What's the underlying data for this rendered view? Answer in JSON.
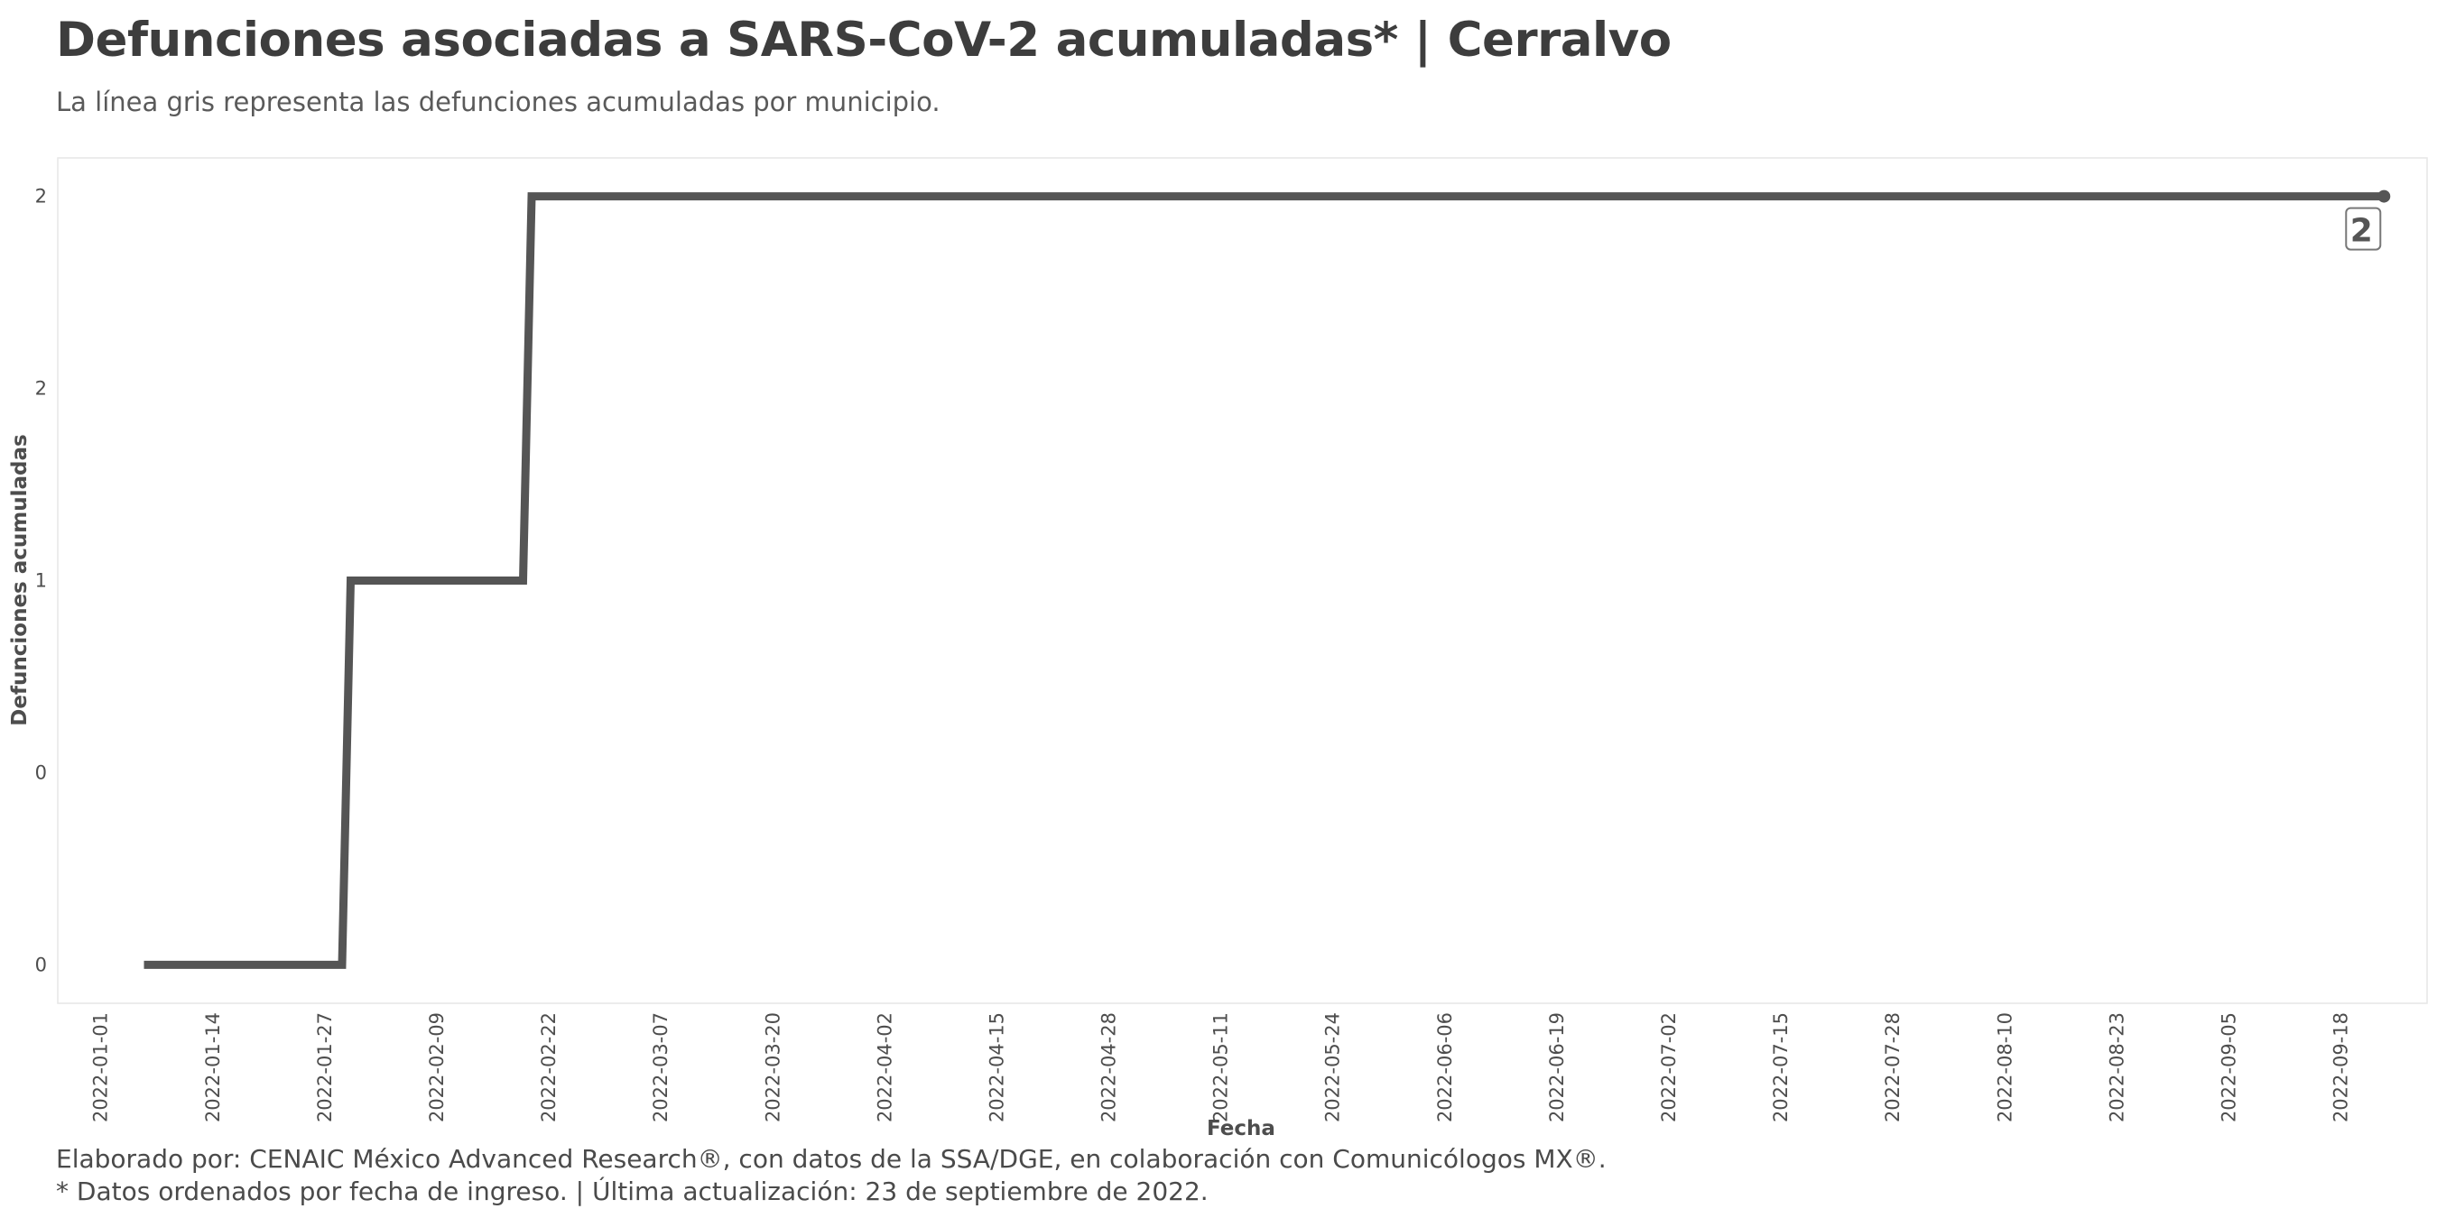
{
  "header": {
    "title": "Defunciones asociadas a SARS-CoV-2 acumuladas* | Cerralvo",
    "subtitle": "La línea gris representa las defunciones acumuladas por municipio."
  },
  "footer": {
    "caption_line1": "Elaborado por: CENAIC México Advanced Research®, con datos de la SSA/DGE, en colaboración con Comunicólogos MX®.",
    "caption_line2": "* Datos ordenados por fecha de ingreso. | Última actualización: 23 de septiembre de 2022."
  },
  "colors": {
    "line": "#555555",
    "panel_border": "#e6e6e6",
    "text": "#4d4d4d"
  },
  "chart_data": {
    "type": "line",
    "step": true,
    "title": "Defunciones asociadas a SARS-CoV-2 acumuladas* | Cerralvo",
    "subtitle": "La línea gris representa las defunciones acumuladas por municipio.",
    "xlabel": "Fecha",
    "ylabel": "Defunciones acumuladas",
    "grid": false,
    "x_ticks": [
      "2022-01-01",
      "2022-01-14",
      "2022-01-27",
      "2022-02-09",
      "2022-02-22",
      "2022-03-07",
      "2022-03-20",
      "2022-04-02",
      "2022-04-15",
      "2022-04-28",
      "2022-05-11",
      "2022-05-24",
      "2022-06-06",
      "2022-06-19",
      "2022-07-02",
      "2022-07-15",
      "2022-07-28",
      "2022-08-10",
      "2022-08-23",
      "2022-09-05",
      "2022-09-18"
    ],
    "y_ticks": [
      0,
      0.5,
      1,
      1.5,
      2
    ],
    "y_tick_labels": [
      "0",
      "0",
      "1",
      "2",
      "2"
    ],
    "xlim": [
      "2021-12-27",
      "2022-09-28"
    ],
    "ylim": [
      -0.1,
      2.1
    ],
    "series": [
      {
        "x": [
          "2022-01-06",
          "2022-01-29",
          "2022-01-30",
          "2022-02-19",
          "2022-02-20",
          "2022-09-23"
        ],
        "y": [
          0,
          0,
          1,
          1,
          2,
          2
        ]
      }
    ],
    "end_label": "2"
  }
}
